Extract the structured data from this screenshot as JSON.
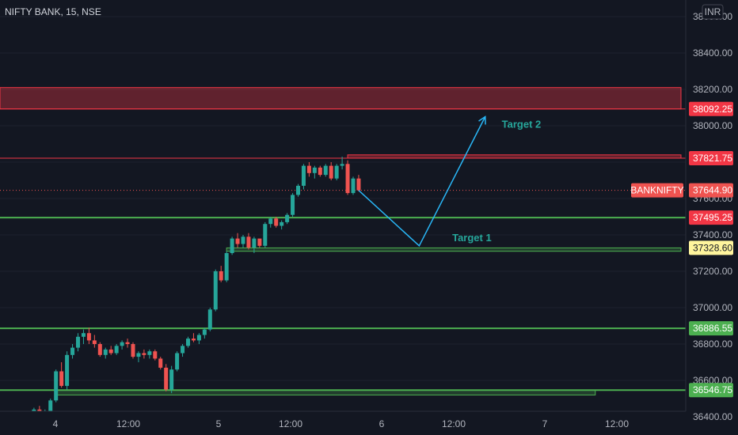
{
  "header": {
    "symbol_title": "NIFTY BANK, 15, NSE",
    "currency": "INR"
  },
  "colors": {
    "background": "#131722",
    "bull": "#26a69a",
    "bear": "#ef5350",
    "resistance": "#f23645",
    "support": "#4caf50",
    "arrow": "#29b6f6",
    "current_price_label": "#ef5350",
    "support_label": "#fff59d",
    "grid": "#1e222d",
    "axis_text": "#b2b5be"
  },
  "chart_data": {
    "type": "candlestick",
    "ylim": [
      36300,
      38700
    ],
    "y_ticks": [
      "36400.00",
      "36600.00",
      "36800.00",
      "37000.00",
      "37200.00",
      "37400.00",
      "37600.00",
      "37800.00",
      "38000.00",
      "38200.00",
      "38400.00",
      "38600.00"
    ],
    "x_ticks": [
      "4",
      "12:00",
      "5",
      "12:00",
      "6",
      "12:00",
      "7",
      "12:00"
    ],
    "price_labels": [
      {
        "text": "38092.25",
        "style": "resistance"
      },
      {
        "text": "37821.75",
        "style": "resistance"
      },
      {
        "text": "37644.90",
        "style": "current",
        "tag": "BANKNIFTY"
      },
      {
        "text": "37495.25",
        "style": "resistance"
      },
      {
        "text": "37328.60",
        "style": "support_yellow"
      },
      {
        "text": "36886.55",
        "style": "support"
      },
      {
        "text": "36546.75",
        "style": "support"
      }
    ],
    "horizontal_levels": [
      38092.25,
      37821.75,
      37495.25,
      36886.55,
      36546.75
    ],
    "current_price": 37644.9,
    "zones": [
      {
        "top": 38210,
        "bottom": 38092.25,
        "kind": "resistance",
        "x_start_bar": -10,
        "x_end_bar": 120
      },
      {
        "top": 37840,
        "bottom": 37822,
        "kind": "resistance",
        "x_start_bar": 59,
        "x_end_bar": 120
      },
      {
        "top": 37328.6,
        "bottom": 37310,
        "kind": "support",
        "x_start_bar": 37,
        "x_end_bar": 120
      },
      {
        "top": 36546.75,
        "bottom": 36520,
        "kind": "support",
        "x_start_bar": 6,
        "x_end_bar": 104
      }
    ],
    "annotations": [
      {
        "text": "Target 2",
        "bar": 87,
        "price": 37990
      },
      {
        "text": "Target 1",
        "bar": 78,
        "price": 37365
      }
    ],
    "projection_path": [
      [
        61,
        37644.9
      ],
      [
        72,
        37340
      ],
      [
        84,
        38050
      ]
    ],
    "candles": [
      [
        36360,
        36390,
        36340,
        36380
      ],
      [
        36380,
        36420,
        36370,
        36400
      ],
      [
        36400,
        36450,
        36390,
        36440
      ],
      [
        36440,
        36460,
        36400,
        36410
      ],
      [
        36410,
        36440,
        36390,
        36430
      ],
      [
        36430,
        36500,
        36420,
        36490
      ],
      [
        36490,
        36660,
        36480,
        36650
      ],
      [
        36650,
        36700,
        36560,
        36570
      ],
      [
        36570,
        36760,
        36550,
        36740
      ],
      [
        36740,
        36800,
        36720,
        36780
      ],
      [
        36780,
        36860,
        36760,
        36840
      ],
      [
        36840,
        36880,
        36800,
        36860
      ],
      [
        36860,
        36890,
        36800,
        36820
      ],
      [
        36820,
        36850,
        36780,
        36800
      ],
      [
        36800,
        36810,
        36730,
        36740
      ],
      [
        36740,
        36780,
        36720,
        36770
      ],
      [
        36770,
        36790,
        36740,
        36750
      ],
      [
        36750,
        36800,
        36740,
        36790
      ],
      [
        36790,
        36820,
        36770,
        36810
      ],
      [
        36810,
        36830,
        36780,
        36800
      ],
      [
        36800,
        36810,
        36720,
        36730
      ],
      [
        36730,
        36760,
        36700,
        36750
      ],
      [
        36750,
        36770,
        36720,
        36740
      ],
      [
        36740,
        36770,
        36720,
        36760
      ],
      [
        36760,
        36770,
        36710,
        36720
      ],
      [
        36720,
        36730,
        36660,
        36670
      ],
      [
        36670,
        36690,
        36540,
        36550
      ],
      [
        36550,
        36680,
        36530,
        36660
      ],
      [
        36660,
        36760,
        36650,
        36750
      ],
      [
        36750,
        36800,
        36730,
        36790
      ],
      [
        36790,
        36840,
        36780,
        36830
      ],
      [
        36830,
        36860,
        36810,
        36820
      ],
      [
        36820,
        36860,
        36800,
        36850
      ],
      [
        36850,
        36890,
        36830,
        36880
      ],
      [
        36880,
        37000,
        36870,
        36990
      ],
      [
        36990,
        37210,
        36980,
        37200
      ],
      [
        37200,
        37230,
        37140,
        37150
      ],
      [
        37150,
        37310,
        37140,
        37300
      ],
      [
        37300,
        37390,
        37290,
        37380
      ],
      [
        37380,
        37410,
        37330,
        37350
      ],
      [
        37350,
        37400,
        37330,
        37390
      ],
      [
        37390,
        37410,
        37320,
        37330
      ],
      [
        37330,
        37390,
        37300,
        37380
      ],
      [
        37380,
        37360,
        37330,
        37340
      ],
      [
        37340,
        37470,
        37330,
        37460
      ],
      [
        37460,
        37500,
        37440,
        37490
      ],
      [
        37490,
        37500,
        37440,
        37450
      ],
      [
        37450,
        37480,
        37430,
        37470
      ],
      [
        37470,
        37520,
        37460,
        37510
      ],
      [
        37510,
        37630,
        37500,
        37620
      ],
      [
        37620,
        37680,
        37610,
        37670
      ],
      [
        37670,
        37790,
        37650,
        37780
      ],
      [
        37780,
        37800,
        37720,
        37740
      ],
      [
        37740,
        37780,
        37710,
        37770
      ],
      [
        37770,
        37780,
        37720,
        37730
      ],
      [
        37730,
        37790,
        37720,
        37780
      ],
      [
        37780,
        37800,
        37700,
        37710
      ],
      [
        37710,
        37790,
        37700,
        37780
      ],
      [
        37780,
        37830,
        37760,
        37790
      ],
      [
        37790,
        37810,
        37620,
        37630
      ],
      [
        37630,
        37720,
        37620,
        37710
      ],
      [
        37710,
        37730,
        37640,
        37645
      ]
    ]
  }
}
